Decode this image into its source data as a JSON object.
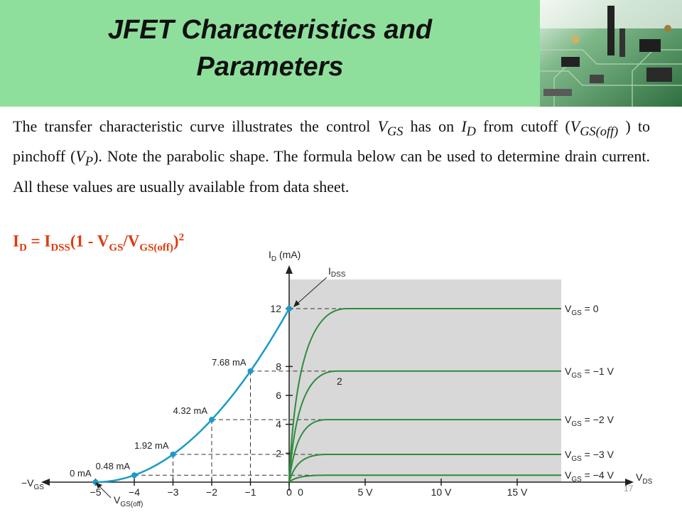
{
  "title": {
    "line1": "JFET Characteristics and",
    "line2": "Parameters"
  },
  "body": {
    "s1": "The transfer characteristic curve illustrates the control ",
    "v": "V",
    "gs": "GS",
    "s2": " has on ",
    "i": "I",
    "d": "D",
    "s3": " from cutoff (",
    "gsoff": "GS(off)",
    "s4": " ) to pinchoff (",
    "p": "P",
    "s5": "). Note the parabolic shape. The formula below can be used to determine drain current. All these values are usually available from data sheet."
  },
  "formula": {
    "i": "I",
    "d": "D",
    "eq": " = I",
    "dss": "DSS",
    "mid": "(1 - V",
    "gs": "GS",
    "slash": "/V",
    "gsoff": "GS(off)",
    "close": ")",
    "pow": "2"
  },
  "page_number": "17",
  "colors": {
    "title_band": "#8fdf9c",
    "formula": "#e03a0c",
    "transfer_curve": "#1a9bc9",
    "drain_curves": "#2e8b3e",
    "region": "#d8d8d8"
  },
  "chart_data": {
    "type": "line",
    "transfer": {
      "vgs": [
        -5,
        -4,
        -3,
        -2,
        -1,
        0
      ],
      "id": [
        0,
        0.48,
        1.92,
        4.32,
        7.68,
        12
      ],
      "point_labels": [
        "0 mA",
        "0.48 mA",
        "1.92 mA",
        "4.32 mA",
        "7.68 mA",
        ""
      ]
    },
    "drain_series": [
      {
        "name": "V",
        "sub": "GS",
        "eq": " = 0",
        "id": 12
      },
      {
        "name": "V",
        "sub": "GS",
        "eq": " = −1 V",
        "id": 7.68
      },
      {
        "name": "V",
        "sub": "GS",
        "eq": " = −2 V",
        "id": 4.32
      },
      {
        "name": "V",
        "sub": "GS",
        "eq": " = −3 V",
        "id": 1.92
      },
      {
        "name": "V",
        "sub": "GS",
        "eq": " = −4 V",
        "id": 0.48
      }
    ],
    "y_axis": {
      "label": "I",
      "label_sub": "D",
      "label_unit": " (mA)",
      "ticks": [
        "12",
        "8",
        "6",
        "4",
        "2"
      ]
    },
    "x_left_ticks": [
      "−5",
      "−4",
      "−3",
      "−2",
      "−1",
      "0"
    ],
    "x_left_label": {
      "text": "−V",
      "sub": "GS"
    },
    "x_right_ticks": [
      "0",
      "5 V",
      "10 V",
      "15 V"
    ],
    "x_right_label": {
      "text": "V",
      "sub": "DS"
    },
    "annotations": {
      "idss": "I",
      "idss_sub": "DSS",
      "vgsoff": "V",
      "vgsoff_sub": "GS(off)",
      "knee_mark": "2"
    }
  }
}
